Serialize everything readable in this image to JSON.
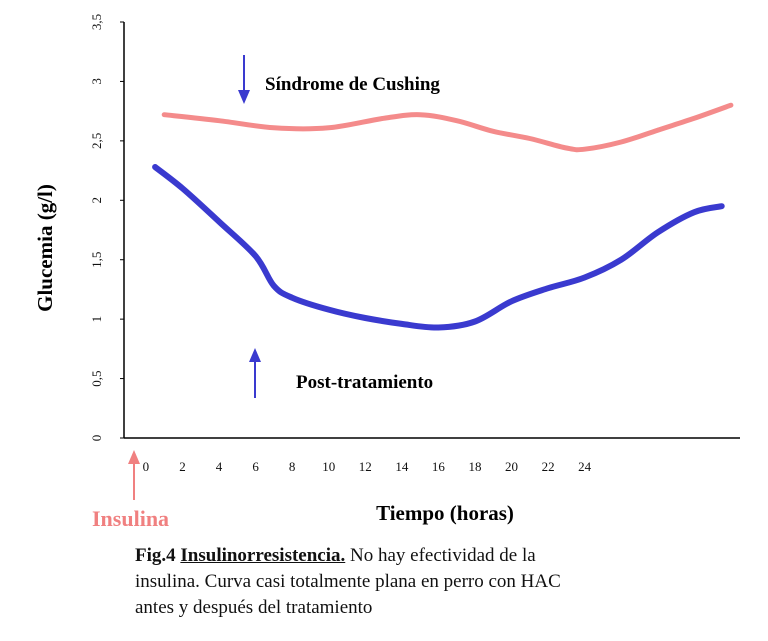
{
  "chart_data": {
    "type": "line",
    "xlabel": "Tiempo (horas)",
    "ylabel": "Glucemia (g/l)",
    "xlim": [
      -1.2,
      32.5
    ],
    "ylim": [
      0,
      3.5
    ],
    "x_ticks": [
      "0",
      "2",
      "4",
      "6",
      "8",
      "10",
      "12",
      "14",
      "16",
      "18",
      "20",
      "22",
      "24"
    ],
    "y_ticks": [
      "0",
      "0,5",
      "1",
      "1,5",
      "2",
      "2,5",
      "3",
      "3,5"
    ],
    "grid": false,
    "series": [
      {
        "name": "Síndrome de Cushing",
        "color": "#f48b8b",
        "x": [
          1,
          4,
          7,
          10,
          13,
          15,
          17,
          19,
          21,
          23,
          24,
          26,
          28,
          30,
          32
        ],
        "y": [
          2.72,
          2.67,
          2.61,
          2.61,
          2.69,
          2.72,
          2.67,
          2.58,
          2.52,
          2.44,
          2.43,
          2.49,
          2.59,
          2.69,
          2.8
        ]
      },
      {
        "name": "Post-tratamiento",
        "color": "#3a3acf",
        "x": [
          0.5,
          2,
          4,
          6,
          7,
          8,
          10,
          12,
          14,
          16,
          18,
          20,
          22,
          24,
          26,
          28,
          30,
          31.5
        ],
        "y": [
          2.28,
          2.1,
          1.82,
          1.53,
          1.28,
          1.18,
          1.08,
          1.01,
          0.96,
          0.93,
          0.98,
          1.15,
          1.26,
          1.35,
          1.5,
          1.73,
          1.9,
          1.95
        ]
      }
    ],
    "annotations": [
      {
        "text": "Síndrome de Cushing",
        "arrow": "down"
      },
      {
        "text": "Post-tratamiento",
        "arrow": "up"
      },
      {
        "text": "Insulina",
        "arrow": "up",
        "color": "#f08080"
      }
    ]
  },
  "caption": {
    "fig_label": "Fig.4",
    "title": "Insulinorresistencia.",
    "text_line1": " No hay efectividad de la",
    "text_line2": "insulina. Curva casi totalmente plana en perro con HAC",
    "text_line3": "antes y después del tratamiento"
  }
}
